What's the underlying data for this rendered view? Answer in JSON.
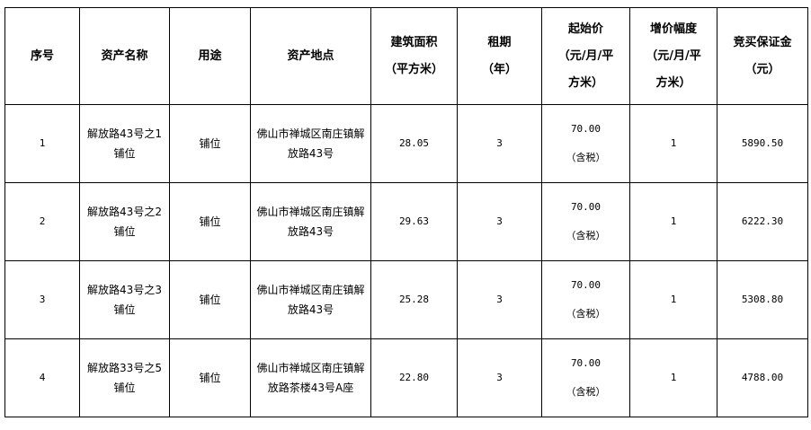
{
  "headers": [
    "序号",
    "资产名称",
    "用途",
    "资产地点",
    "建筑面积\n(平方米)",
    "租期\n(年)",
    "起始价\n(元/月/平\n方米)",
    "增价幅度\n(元/月/平\n方米)",
    "竞买保证金\n(元)"
  ],
  "rows": [
    {
      "no": "1",
      "name": "解放路43号之1铺位",
      "use": "铺位",
      "location": "佛山市禅城区南庄镇解放路43号",
      "area": "28.05",
      "term": "3",
      "price": "70.00",
      "tax": "（含税）",
      "increment": "1",
      "deposit": "5890.50"
    },
    {
      "no": "2",
      "name": "解放路43号之2铺位",
      "use": "铺位",
      "location": "佛山市禅城区南庄镇解放路43号",
      "area": "29.63",
      "term": "3",
      "price": "70.00",
      "tax": "（含税）",
      "increment": "1",
      "deposit": "6222.30"
    },
    {
      "no": "3",
      "name": "解放路43号之3铺位",
      "use": "铺位",
      "location": "佛山市禅城区南庄镇解放路43号",
      "area": "25.28",
      "term": "3",
      "price": "70.00",
      "tax": "（含税）",
      "increment": "1",
      "deposit": "5308.80"
    },
    {
      "no": "4",
      "name": "解放路33号之5铺位",
      "use": "铺位",
      "location": "佛山市禅城区南庄镇解放路茶楼43号A座",
      "area": "22.80",
      "term": "3",
      "price": "70.00",
      "tax": "（含税）",
      "increment": "1",
      "deposit": "4788.00"
    }
  ]
}
